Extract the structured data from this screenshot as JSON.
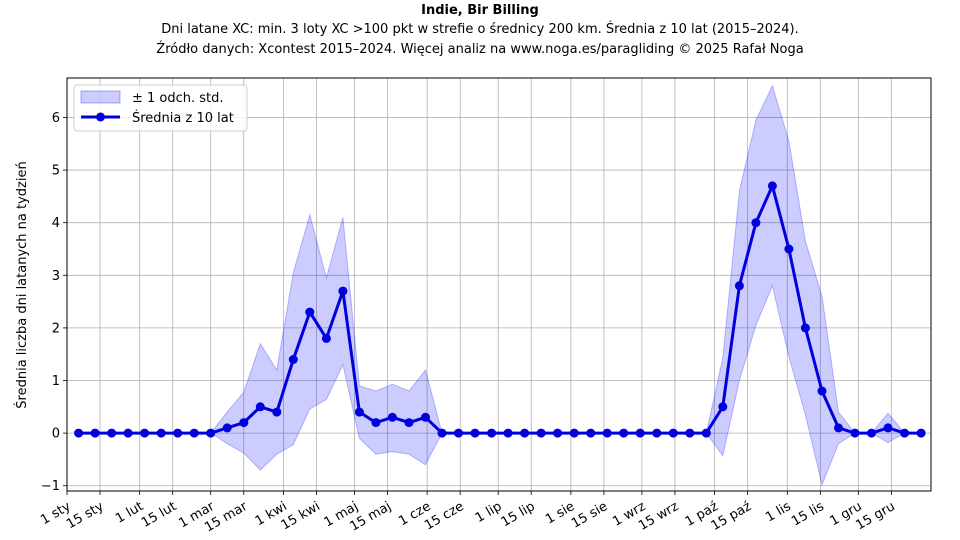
{
  "chart_data": {
    "type": "line",
    "title": "Indie, Bir Billing",
    "subtitle_lines": [
      "Dni latane XC: min. 3 loty XC >100 pkt w strefie o średnicy 200 km. Średnia z 10 lat (2015–2024).",
      "Źródło danych: Xcontest 2015–2024. Więcej analiz na www.noga.es/paragliding © 2025 Rafał Noga"
    ],
    "ylabel": "Średnia liczba dni latanych na tydzień",
    "xlabel": "",
    "ylim": [
      -1.1,
      6.75
    ],
    "yticks": [
      -1,
      0,
      1,
      2,
      3,
      4,
      5,
      6
    ],
    "xlim": [
      -0.7,
      51.6
    ],
    "x_tick_labels": [
      "1 sty",
      "15 sty",
      "1 lut",
      "15 lut",
      "1 mar",
      "15 mar",
      "1 kwi",
      "15 kwi",
      "1 maj",
      "15 maj",
      "1 cze",
      "15 cze",
      "1 lip",
      "15 lip",
      "1 sie",
      "15 sie",
      "1 wrz",
      "15 wrz",
      "1 paź",
      "15 paź",
      "1 lis",
      "15 lis",
      "1 gru",
      "15 gru"
    ],
    "x_tick_weeks": [
      -0.7,
      1.3,
      3.7,
      5.7,
      8.0,
      10.0,
      12.4,
      14.4,
      16.7,
      18.7,
      21.1,
      23.1,
      25.4,
      27.4,
      29.8,
      31.8,
      34.1,
      36.1,
      38.5,
      40.5,
      42.9,
      44.9,
      47.2,
      49.2
    ],
    "grid": true,
    "legend_position": "top-left",
    "legend": {
      "band_label": "± 1 odch. std.",
      "mean_label": "Średnia z 10 lat"
    },
    "series": [
      {
        "name": "Średnia z 10 lat",
        "color": "#0000dd",
        "values": [
          0,
          0,
          0,
          0,
          0,
          0,
          0,
          0,
          0,
          0.1,
          0.2,
          0.5,
          0.4,
          1.4,
          2.3,
          1.8,
          2.7,
          0.4,
          0.2,
          0.3,
          0.2,
          0.3,
          0,
          0,
          0,
          0,
          0,
          0,
          0,
          0,
          0,
          0,
          0,
          0,
          0,
          0,
          0,
          0,
          0,
          0.5,
          2.8,
          4.0,
          4.7,
          3.5,
          2.0,
          0.8,
          0.1,
          0,
          0,
          0.1,
          0,
          0
        ]
      }
    ],
    "band": {
      "name": "± 1 odch. std.",
      "color": "#0000ff",
      "upper": [
        0,
        0,
        0,
        0,
        0,
        0,
        0,
        0,
        0,
        0.4,
        0.78,
        1.7,
        1.2,
        3.05,
        4.15,
        2.95,
        4.1,
        0.9,
        0.8,
        0.93,
        0.8,
        1.2,
        0,
        0,
        0,
        0,
        0,
        0,
        0,
        0,
        0,
        0,
        0,
        0,
        0,
        0,
        0,
        0,
        0,
        1.43,
        4.6,
        5.95,
        6.6,
        5.55,
        3.65,
        2.6,
        0.4,
        0,
        0,
        0.38,
        0,
        0
      ],
      "lower": [
        0,
        0,
        0,
        0,
        0,
        0,
        0,
        0,
        0,
        -0.2,
        -0.38,
        -0.7,
        -0.4,
        -0.22,
        0.46,
        0.64,
        1.3,
        -0.1,
        -0.4,
        -0.35,
        -0.4,
        -0.6,
        0,
        0,
        0,
        0,
        0,
        0,
        0,
        0,
        0,
        0,
        0,
        0,
        0,
        0,
        0,
        0,
        0,
        -0.43,
        1.0,
        2.05,
        2.8,
        1.45,
        0.35,
        -0.98,
        -0.2,
        0,
        0,
        -0.18,
        0,
        0
      ]
    }
  }
}
